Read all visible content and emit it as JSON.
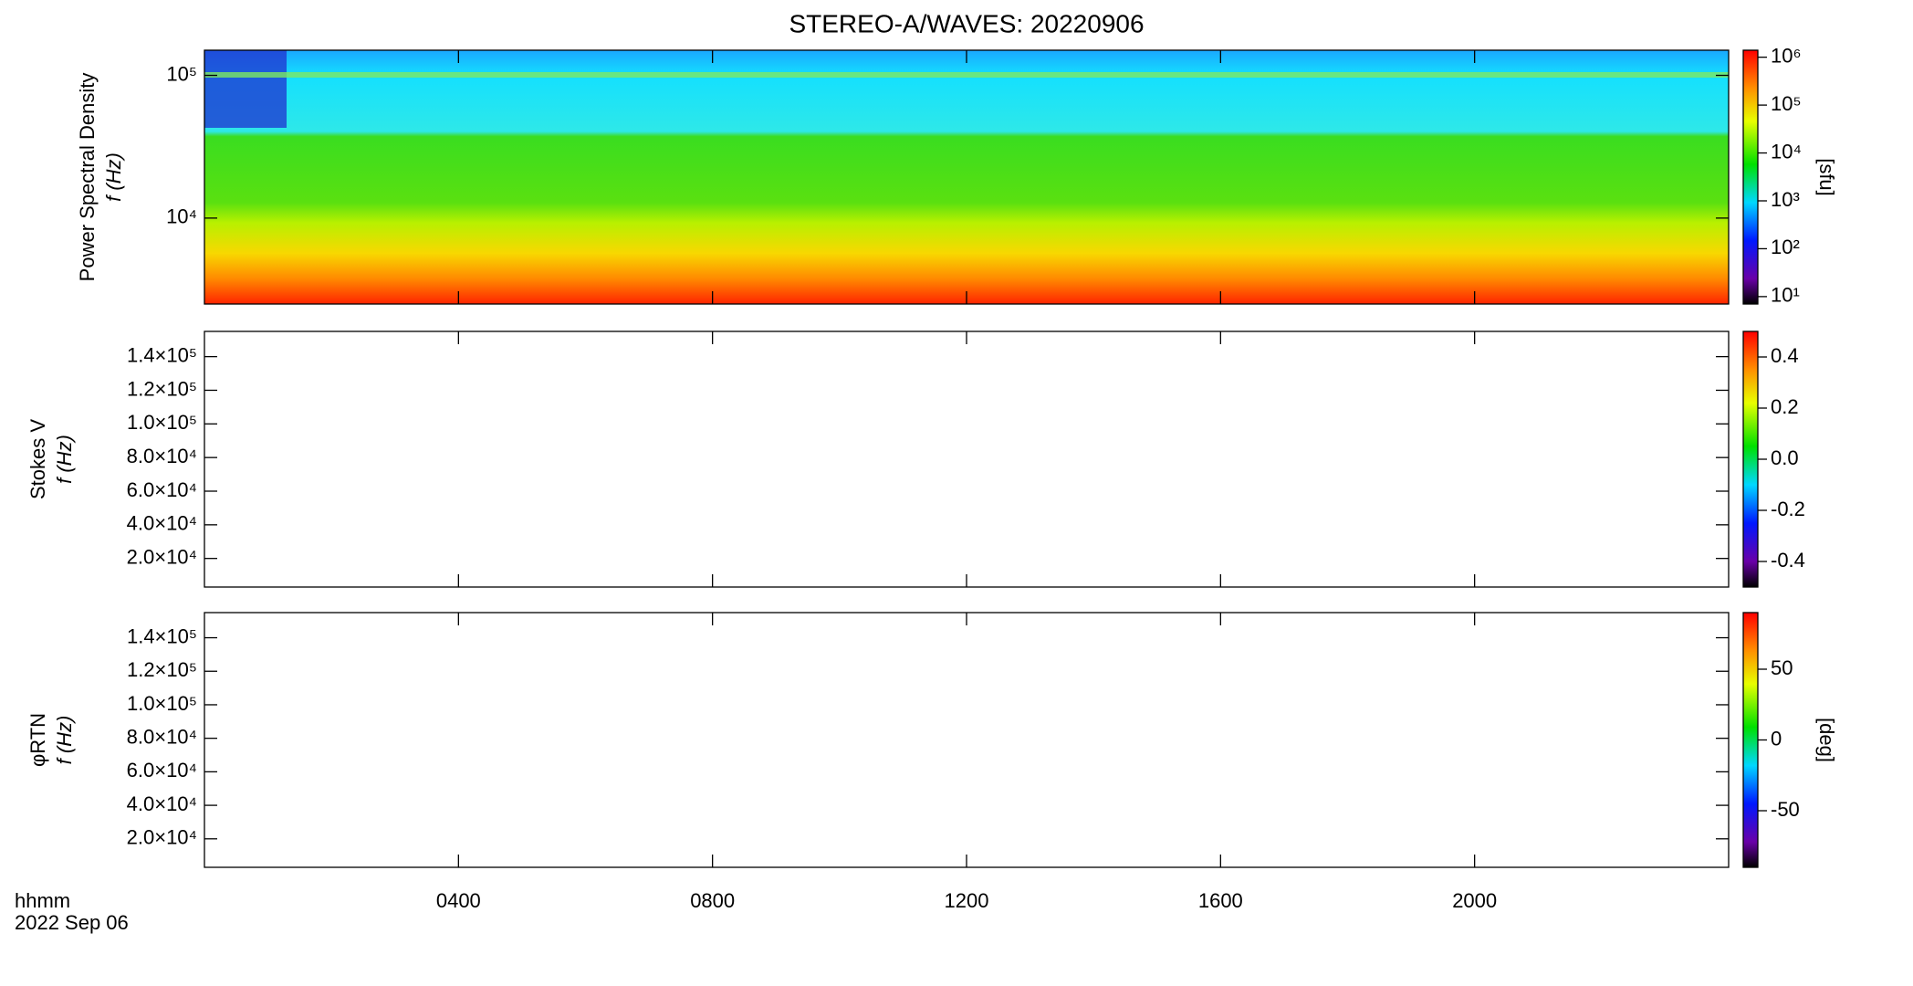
{
  "chart_data": [
    {
      "type": "spectrogram",
      "title": "STEREO-A/WAVES: 20220906",
      "ylabel": [
        "Power Spectral Density",
        "f (Hz)"
      ],
      "ylog": true,
      "ylim": [
        2500,
        150000
      ],
      "yticks": [
        {
          "value": 10000,
          "label": "10⁴"
        },
        {
          "value": 100000,
          "label": "10⁵"
        }
      ],
      "clog": true,
      "clim": [
        7,
        1400000
      ],
      "cticks": [
        {
          "value": 10,
          "label": "10¹"
        },
        {
          "value": 100,
          "label": "10²"
        },
        {
          "value": 1000,
          "label": "10³"
        },
        {
          "value": 10000,
          "label": "10⁴"
        },
        {
          "value": 100000,
          "label": "10⁵"
        },
        {
          "value": 1000000,
          "label": "10⁶"
        }
      ],
      "clabel": "[sfu]"
    },
    {
      "type": "spectrogram",
      "ylabel": [
        "Stokes V",
        "f (Hz)"
      ],
      "ylog": false,
      "ylim": [
        3000,
        155000
      ],
      "yticks": [
        {
          "value": 20000,
          "label": "2.0×10⁴"
        },
        {
          "value": 40000,
          "label": "4.0×10⁴"
        },
        {
          "value": 60000,
          "label": "6.0×10⁴"
        },
        {
          "value": 80000,
          "label": "8.0×10⁴"
        },
        {
          "value": 100000,
          "label": "1.0×10⁵"
        },
        {
          "value": 120000,
          "label": "1.2×10⁵"
        },
        {
          "value": 140000,
          "label": "1.4×10⁵"
        }
      ],
      "clog": false,
      "clim": [
        -0.5,
        0.5
      ],
      "cticks": [
        {
          "value": -0.4,
          "label": "-0.4"
        },
        {
          "value": -0.2,
          "label": "-0.2"
        },
        {
          "value": 0,
          "label": "0.0"
        },
        {
          "value": 0.2,
          "label": "0.2"
        },
        {
          "value": 0.4,
          "label": "0.4"
        }
      ]
    },
    {
      "type": "spectrogram",
      "ylabel": [
        "φRTN",
        "f (Hz)"
      ],
      "ylog": false,
      "ylim": [
        3000,
        155000
      ],
      "yticks": [
        {
          "value": 20000,
          "label": "2.0×10⁴"
        },
        {
          "value": 40000,
          "label": "4.0×10⁴"
        },
        {
          "value": 60000,
          "label": "6.0×10⁴"
        },
        {
          "value": 80000,
          "label": "8.0×10⁴"
        },
        {
          "value": 100000,
          "label": "1.0×10⁵"
        },
        {
          "value": 120000,
          "label": "1.2×10⁵"
        },
        {
          "value": 140000,
          "label": "1.4×10⁵"
        }
      ],
      "clog": false,
      "clim": [
        -90,
        90
      ],
      "cticks": [
        -50,
        0,
        50
      ],
      "clabel": "[deg]",
      "xlim": [
        0,
        24
      ],
      "xticks": [
        {
          "value": 4,
          "label": "0400"
        },
        {
          "value": 8,
          "label": "0800"
        },
        {
          "value": 12,
          "label": "1200"
        },
        {
          "value": 16,
          "label": "1600"
        },
        {
          "value": 20,
          "label": "2000"
        }
      ],
      "xlabel": [
        "hhmm",
        "2022 Sep 06"
      ]
    }
  ]
}
